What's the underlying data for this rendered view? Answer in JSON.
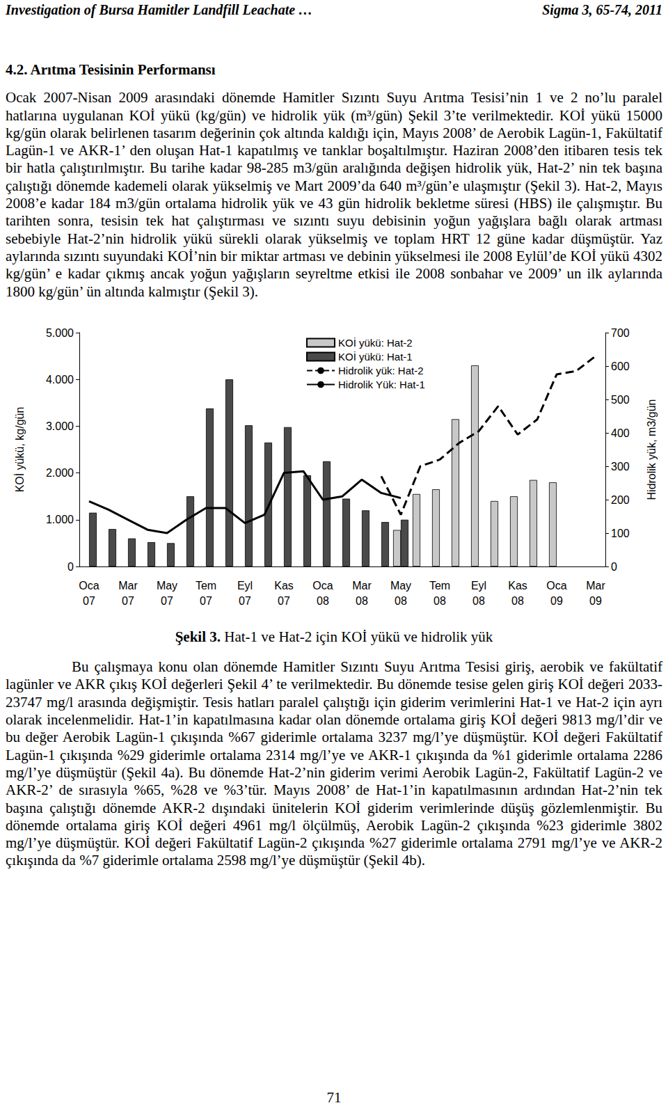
{
  "header": {
    "left": "Investigation of Bursa Hamitler Landfill Leachate …",
    "right": "Sigma 3, 65-74, 2011"
  },
  "heading": "4.2. Arıtma Tesisinin Performansı",
  "paragraphs": [
    "Ocak 2007-Nisan 2009 arasındaki dönemde Hamitler Sızıntı Suyu Arıtma Tesisi’nin 1 ve 2 no’lu paralel hatlarına uygulanan KOİ yükü (kg/gün) ve hidrolik yük (m³/gün) Şekil 3’te verilmektedir. KOİ yükü 15000 kg/gün olarak belirlenen tasarım değerinin çok altında kaldığı için, Mayıs 2008’ de Aerobik Lagün-1, Fakültatif Lagün-1 ve AKR-1’ den oluşan Hat-1 kapatılmış ve tanklar boşaltılmıştır. Haziran 2008’den itibaren tesis tek bir hatla çalıştırılmıştır. Bu tarihe kadar 98-285 m3/gün aralığında değişen hidrolik yük, Hat-2’ nin tek başına çalıştığı dönemde kademeli olarak yükselmiş ve Mart 2009’da 640 m³/gün’e ulaşmıştır (Şekil 3). Hat-2, Mayıs 2008’e kadar 184 m3/gün ortalama hidrolik yük ve 43 gün hidrolik bekletme süresi (HBS) ile çalışmıştır. Bu tarihten sonra, tesisin tek hat çalıştırması ve sızıntı suyu debisinin yoğun yağışlara bağlı olarak artması sebebiyle Hat-2’nin hidrolik yükü sürekli olarak yükselmiş ve toplam HRT 12 güne kadar düşmüştür. Yaz aylarında sızıntı suyundaki KOİ’nin bir miktar artması ve debinin yükselmesi ile 2008 Eylül’de KOİ yükü 4302 kg/gün’ e kadar çıkmış ancak yoğun yağışların seyreltme etkisi ile 2008 sonbahar ve 2009’ un ilk aylarında 1800 kg/gün’ ün altında kalmıştır (Şekil 3)."
  ],
  "chart_data": {
    "type": "bar",
    "y_label": "KOİ yükü, kg/gün",
    "y2_label": "Hidrolik yük, m3/gün",
    "categories": [
      "Oca 07",
      null,
      "Mar 07",
      null,
      "May 07",
      null,
      "Tem 07",
      null,
      "Eyl 07",
      null,
      "Kas 07",
      null,
      "Oca 08",
      null,
      "Mar 08",
      null,
      "May 08",
      null,
      "Tem 08",
      null,
      "Eyl 08",
      null,
      "Kas 08",
      null,
      "Oca 09",
      null,
      "Mar 09"
    ],
    "ylim": [
      0,
      5000
    ],
    "yticks": [
      0,
      {
        "value": 1000,
        "label": "1.000"
      },
      {
        "value": 2000,
        "label": "2.000"
      },
      {
        "value": 3000,
        "label": "3.000"
      },
      {
        "value": 4000,
        "label": "4.000"
      },
      {
        "value": 5000,
        "label": "5.000"
      }
    ],
    "y2lim": [
      0,
      700
    ],
    "y2ticks": [
      0,
      100,
      200,
      300,
      400,
      500,
      600,
      700
    ],
    "grid": false,
    "series": [
      {
        "name": "KOİ yükü: Hat-2",
        "type": "bar",
        "color": "#c8c8c8",
        "values": [
          null,
          null,
          null,
          null,
          null,
          null,
          null,
          null,
          null,
          null,
          null,
          null,
          null,
          null,
          null,
          null,
          780,
          1550,
          1650,
          3150,
          4300,
          1400,
          1500,
          1850,
          1800,
          null,
          null
        ]
      },
      {
        "name": "KOİ yükü: Hat-1",
        "type": "bar",
        "color": "#4a4a4a",
        "values": [
          1150,
          800,
          600,
          520,
          500,
          1500,
          3380,
          4000,
          3020,
          2650,
          2980,
          1950,
          2250,
          1450,
          1200,
          950,
          1000,
          null,
          null,
          null,
          null,
          null,
          null,
          null,
          null,
          null,
          null
        ]
      },
      {
        "name": "Hidrolik yük: Hat-2",
        "type": "line",
        "axis": "y2",
        "color": "#000000",
        "line_style": "dashed",
        "values": [
          null,
          null,
          null,
          null,
          null,
          null,
          null,
          null,
          null,
          null,
          null,
          null,
          null,
          null,
          null,
          270,
          155,
          300,
          320,
          370,
          405,
          480,
          395,
          440,
          575,
          585,
          630
        ]
      },
      {
        "name": "Hidrolik Yük: Hat-1",
        "type": "line",
        "axis": "y2",
        "color": "#000000",
        "line_style": "solid",
        "values": [
          195,
          170,
          140,
          110,
          100,
          140,
          175,
          175,
          130,
          155,
          280,
          285,
          200,
          210,
          260,
          220,
          205,
          null,
          null,
          null,
          null,
          null,
          null,
          null,
          null,
          null,
          null
        ]
      }
    ]
  },
  "caption": {
    "label": "Şekil 3.",
    "text": "Hat-1 ve Hat-2 için KOİ yükü ve hidrolik yük"
  },
  "paragraphs_after": [
    "Bu çalışmaya konu olan dönemde Hamitler Sızıntı Suyu Arıtma Tesisi giriş, aerobik ve fakültatif lagünler ve AKR çıkış KOİ değerleri Şekil 4’ te verilmektedir. Bu dönemde tesise gelen giriş KOİ değeri 2033-23747 mg/l arasında değişmiştir. Tesis hatları paralel çalıştığı için giderim verimlerini Hat-1 ve Hat-2 için ayrı olarak incelenmelidir. Hat-1’in kapatılmasına kadar olan dönemde ortalama giriş KOİ değeri 9813 mg/l’dir ve bu değer Aerobik Lagün-1 çıkışında %67 giderimle ortalama 3237 mg/l’ye düşmüştür. KOİ değeri Fakültatif Lagün-1 çıkışında %29 giderimle ortalama 2314 mg/l’ye ve AKR-1 çıkışında da %1 giderimle ortalama 2286 mg/l’ye düşmüştür (Şekil 4a). Bu dönemde Hat-2’nin giderim verimi Aerobik Lagün-2, Fakültatif Lagün-2 ve AKR-2’ de sırasıyla %65, %28 ve %3’tür. Mayıs 2008’ de Hat-1’in kapatılmasının ardından Hat-2’nin tek başına çalıştığı dönemde AKR-2 dışındaki ünitelerin KOİ giderim verimlerinde düşüş gözlemlenmiştir. Bu dönemde ortalama giriş KOİ değeri 4961 mg/l ölçülmüş, Aerobik Lagün-2 çıkışında %23 giderimle 3802 mg/l’ye düşmüştür. KOİ değeri Fakültatif Lagün-2 çıkışında %27 giderimle ortalama 2791 mg/l’ye ve AKR-2 çıkışında da %7 giderimle ortalama 2598 mg/l’ye düşmüştür (Şekil 4b)."
  ],
  "page_number": "71"
}
